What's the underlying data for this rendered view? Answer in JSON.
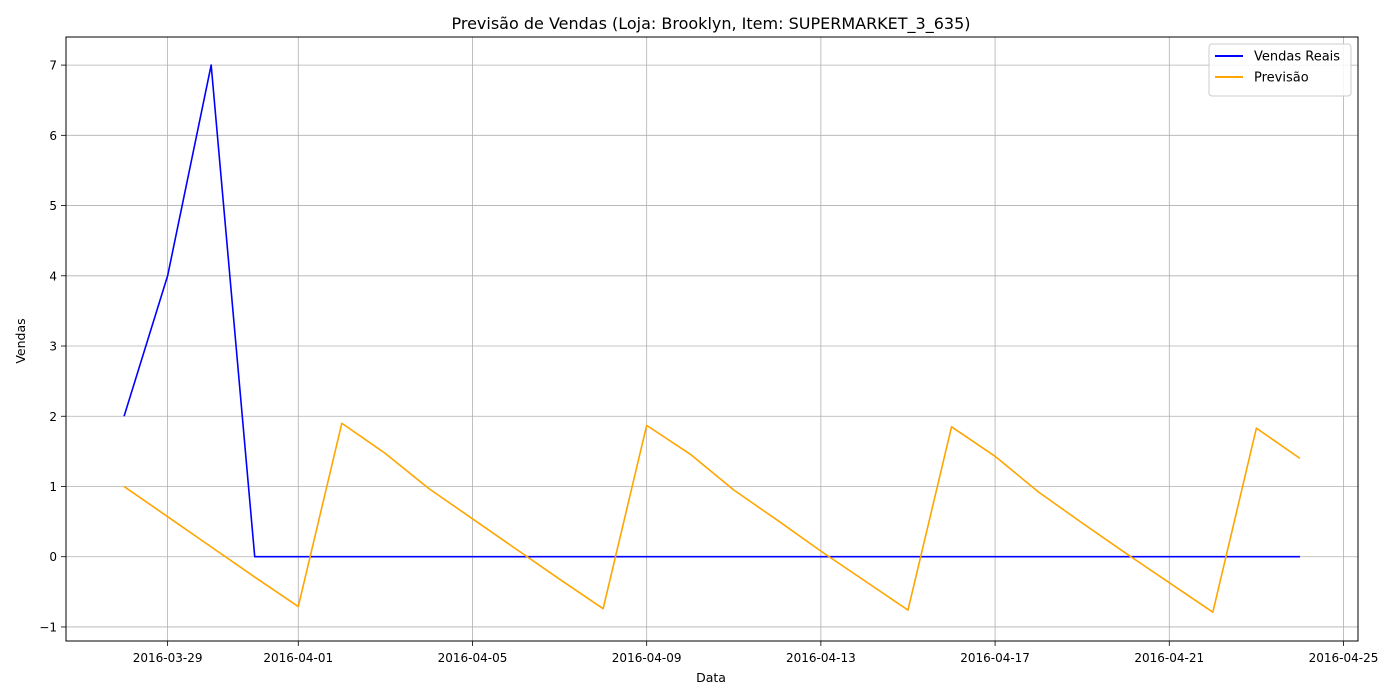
{
  "chart_data": {
    "type": "line",
    "title": "Previsão de Vendas (Loja: Brooklyn, Item: SUPERMARKET_3_635)",
    "xlabel": "Data",
    "ylabel": "Vendas",
    "x_type": "date",
    "xlim": [
      "2016-03-26 16:00",
      "2016-04-25 08:00"
    ],
    "ylim": [
      -1.2,
      7.4
    ],
    "x_ticks": [
      "2016-03-29",
      "2016-04-01",
      "2016-04-05",
      "2016-04-09",
      "2016-04-13",
      "2016-04-17",
      "2016-04-21",
      "2016-04-25"
    ],
    "y_ticks": [
      -1,
      0,
      1,
      2,
      3,
      4,
      5,
      6,
      7
    ],
    "grid": true,
    "legend_position": "top-right",
    "x": [
      "2016-03-28",
      "2016-03-29",
      "2016-03-30",
      "2016-03-31",
      "2016-04-01",
      "2016-04-02",
      "2016-04-03",
      "2016-04-04",
      "2016-04-05",
      "2016-04-06",
      "2016-04-07",
      "2016-04-08",
      "2016-04-09",
      "2016-04-10",
      "2016-04-11",
      "2016-04-12",
      "2016-04-13",
      "2016-04-14",
      "2016-04-15",
      "2016-04-16",
      "2016-04-17",
      "2016-04-18",
      "2016-04-19",
      "2016-04-20",
      "2016-04-21",
      "2016-04-22",
      "2016-04-23",
      "2016-04-24"
    ],
    "series": [
      {
        "name": "Vendas Reais",
        "color": "#0000ff",
        "values": [
          2,
          4,
          7,
          0,
          0,
          0,
          0,
          0,
          0,
          0,
          0,
          0,
          0,
          0,
          0,
          0,
          0,
          0,
          0,
          0,
          0,
          0,
          0,
          0,
          0,
          0,
          0,
          0
        ]
      },
      {
        "name": "Previsão",
        "color": "#ffa500",
        "values": [
          1.0,
          0.57,
          0.14,
          -0.29,
          -0.71,
          1.9,
          1.47,
          0.97,
          0.54,
          0.11,
          -0.32,
          -0.74,
          1.87,
          1.46,
          0.95,
          0.52,
          0.08,
          -0.34,
          -0.76,
          1.85,
          1.43,
          0.92,
          0.48,
          0.05,
          -0.37,
          -0.79,
          1.83,
          1.4
        ]
      }
    ]
  }
}
